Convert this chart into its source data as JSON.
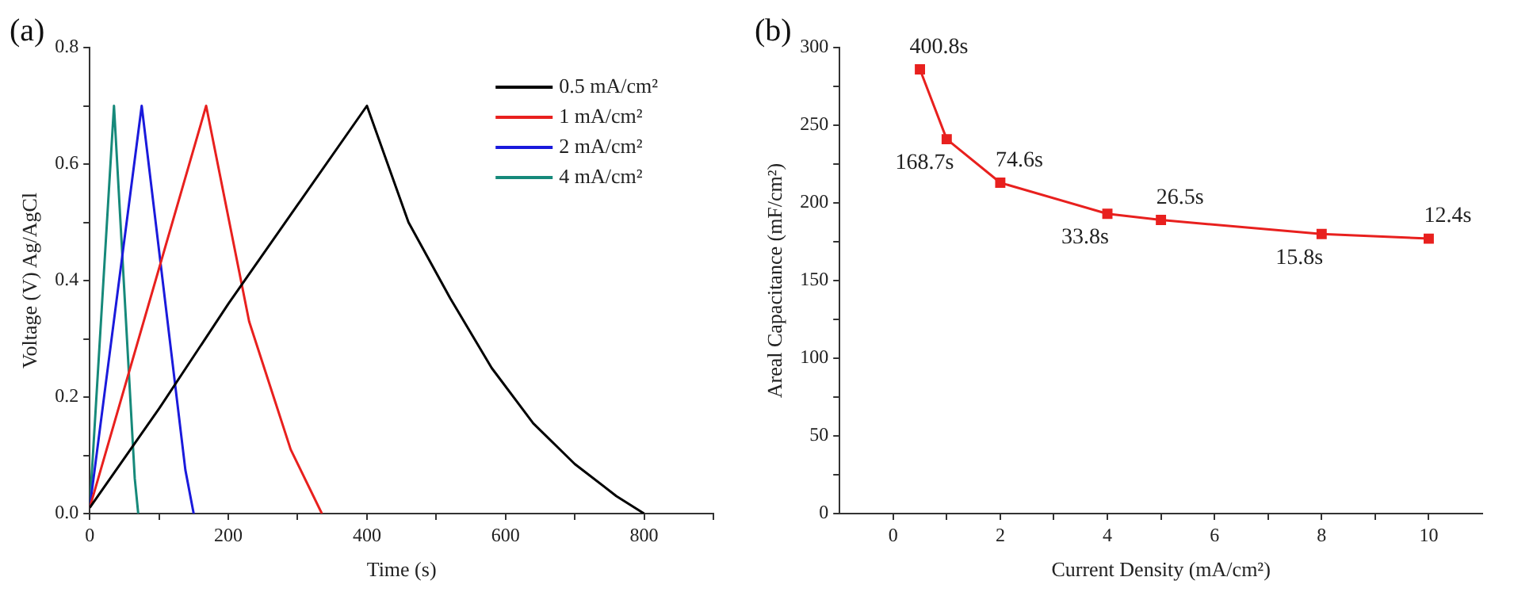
{
  "chart_data": [
    {
      "type": "line",
      "title": "(a)",
      "xlabel": "Time (s)",
      "ylabel": "Voltage (V) Ag/AgCl",
      "xlim": [
        0,
        900
      ],
      "ylim": [
        0,
        0.8
      ],
      "xticks": [
        0,
        {
          "value": 100,
          "label": null
        },
        200,
        {
          "value": 300,
          "label": null
        },
        400,
        {
          "value": 500,
          "label": null
        },
        600,
        {
          "value": 700,
          "label": null
        },
        800,
        {
          "value": 900,
          "label": null
        }
      ],
      "yticks": [
        "0.0",
        {
          "value": 0.1,
          "label": null
        },
        {
          "value": 0.2,
          "label": "0.2"
        },
        {
          "value": 0.3,
          "label": null
        },
        {
          "value": 0.4,
          "label": "0.4"
        },
        {
          "value": 0.5,
          "label": null
        },
        {
          "value": 0.6,
          "label": "0.6"
        },
        {
          "value": 0.7,
          "label": null
        },
        {
          "value": 0.8,
          "label": "0.8"
        }
      ],
      "legend": "top right",
      "marker": "none",
      "line_style": "solid",
      "grid": false,
      "series": [
        {
          "name": "0.5 mA/cm²",
          "color": "#000000",
          "x": [
            0,
            100,
            200,
            300,
            400,
            460,
            520,
            580,
            640,
            700,
            760,
            800
          ],
          "values": [
            0.01,
            0.18,
            0.36,
            0.53,
            0.7,
            0.5,
            0.37,
            0.25,
            0.155,
            0.085,
            0.03,
            0
          ]
        },
        {
          "name": "1 mA/cm²",
          "color": "#e8201e",
          "x": [
            0,
            168,
            230,
            290,
            335
          ],
          "values": [
            0.01,
            0.7,
            0.33,
            0.11,
            0
          ]
        },
        {
          "name": "2 mA/cm²",
          "color": "#1a1adc",
          "x": [
            0,
            75,
            138,
            150
          ],
          "values": [
            0.01,
            0.7,
            0.075,
            0
          ]
        },
        {
          "name": "4 mA/cm²",
          "color": "#16897a",
          "x": [
            0,
            35,
            65,
            70
          ],
          "values": [
            0.01,
            0.7,
            0.06,
            0
          ]
        }
      ]
    },
    {
      "type": "line",
      "title": "(b)",
      "xlabel": "Current Density (mA/cm²)",
      "ylabel": "Areal Capacitance (mF/cm²)",
      "xlim": [
        -1,
        11
      ],
      "ylim": [
        0,
        300
      ],
      "xticks": [
        0,
        {
          "value": 1,
          "label": null
        },
        2,
        {
          "value": 3,
          "label": null
        },
        4,
        {
          "value": 5,
          "label": null
        },
        6,
        {
          "value": 7,
          "label": null
        },
        8,
        {
          "value": 9,
          "label": null
        },
        10
      ],
      "yticks": [
        0,
        {
          "value": 25,
          "label": null
        },
        50,
        {
          "value": 75,
          "label": null
        },
        100,
        {
          "value": 125,
          "label": null
        },
        150,
        {
          "value": 175,
          "label": null
        },
        200,
        {
          "value": 225,
          "label": null
        },
        250,
        {
          "value": 275,
          "label": null
        },
        300
      ],
      "marker": "square",
      "line_style": "solid",
      "grid": false,
      "series": [
        {
          "color": "#e8201e",
          "x": [
            0.5,
            1,
            2,
            4,
            5,
            8,
            10
          ],
          "values": [
            286,
            241,
            213,
            193,
            189,
            180,
            177
          ]
        }
      ],
      "annotations": [
        {
          "text": "400.8s",
          "x": 0.5,
          "y": 286
        },
        {
          "text": "168.7s",
          "x": 1,
          "y": 241
        },
        {
          "text": "74.6s",
          "x": 2,
          "y": 213
        },
        {
          "text": "33.8s",
          "x": 4,
          "y": 193
        },
        {
          "text": "26.5s",
          "x": 5,
          "y": 189
        },
        {
          "text": "15.8s",
          "x": 8,
          "y": 180
        },
        {
          "text": "12.4s",
          "x": 10,
          "y": 177
        }
      ]
    }
  ]
}
